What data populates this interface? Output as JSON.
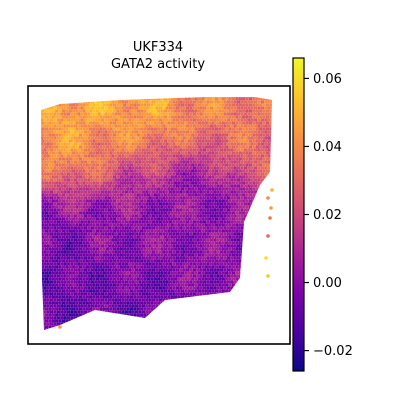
{
  "chart_data": {
    "type": "scatter",
    "title": "UKF334",
    "subtitle": "GATA2 activity",
    "xlabel": "",
    "ylabel": "",
    "grid": false,
    "colormap": "plasma",
    "colorbar": {
      "min": -0.026,
      "max": 0.066,
      "ticks": [
        {
          "value": -0.02,
          "label": "−0.02"
        },
        {
          "value": 0.0,
          "label": "0.00"
        },
        {
          "value": 0.02,
          "label": "0.02"
        },
        {
          "value": 0.04,
          "label": "0.04"
        },
        {
          "value": 0.06,
          "label": "0.06"
        }
      ]
    },
    "regions": [
      {
        "area": "top-left",
        "value": 0.05
      },
      {
        "area": "top-center",
        "value": 0.055
      },
      {
        "area": "upper-band",
        "value": 0.04
      },
      {
        "area": "center",
        "value": 0.0
      },
      {
        "area": "lower-left",
        "value": -0.01
      },
      {
        "area": "right-edge",
        "value": 0.03
      }
    ]
  }
}
